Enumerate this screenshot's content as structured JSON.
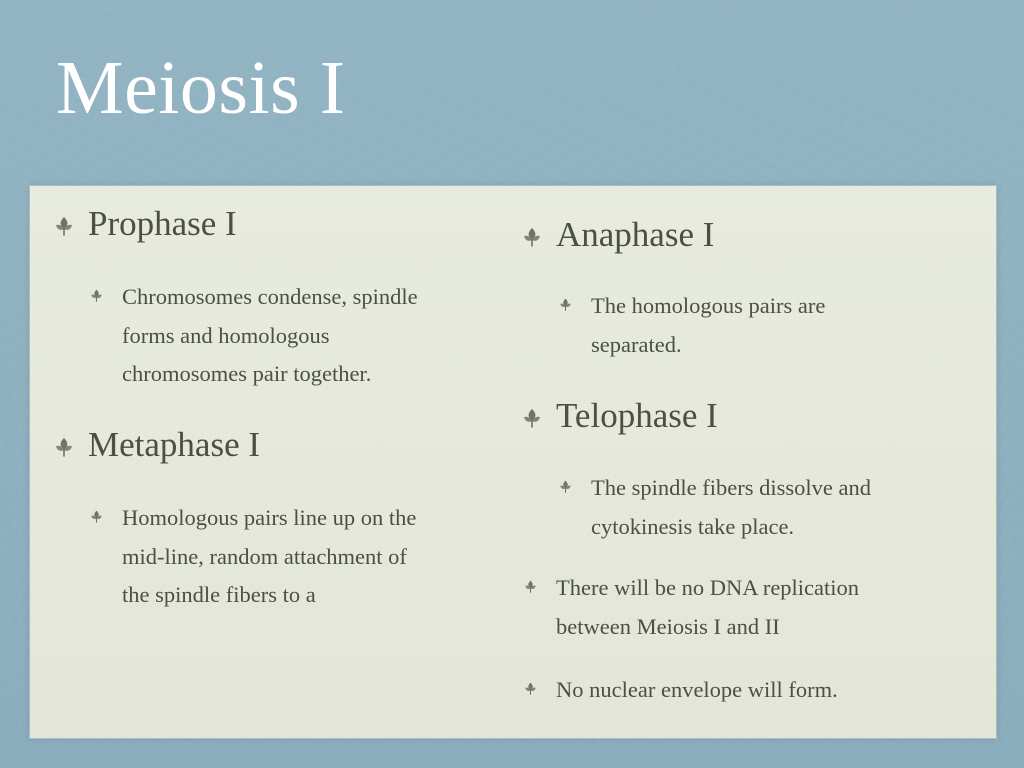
{
  "slide": {
    "title": "Meiosis I"
  },
  "left_column": {
    "prophase": {
      "heading": "Prophase I",
      "detail_lines": [
        "Chromosomes condense, spindle",
        "forms and homologous",
        "chromosomes pair together."
      ]
    },
    "metaphase": {
      "heading": "Metaphase I",
      "detail_lines": [
        "Homologous pairs line up on the",
        "mid-line, random attachment of",
        "the spindle fibers to a"
      ]
    }
  },
  "right_column": {
    "anaphase": {
      "heading": "Anaphase I",
      "detail_lines": [
        "The homologous pairs are",
        "separated."
      ]
    },
    "telophase": {
      "heading": "Telophase I",
      "detail_lines": [
        "The spindle fibers dissolve and",
        "cytokinesis take place."
      ]
    },
    "notes": [
      {
        "lines": [
          "There will be no DNA replication",
          "between Meiosis I and II"
        ]
      },
      {
        "lines": [
          "No nuclear envelope will form."
        ]
      }
    ]
  },
  "colors": {
    "background": "#8fb1c1",
    "panel": "#e6e9dc",
    "title_text": "#ffffff",
    "body_text": "#4a5046",
    "bullet": "#6e7468"
  },
  "icons": {
    "bullet": "leaf-bullet-icon"
  }
}
